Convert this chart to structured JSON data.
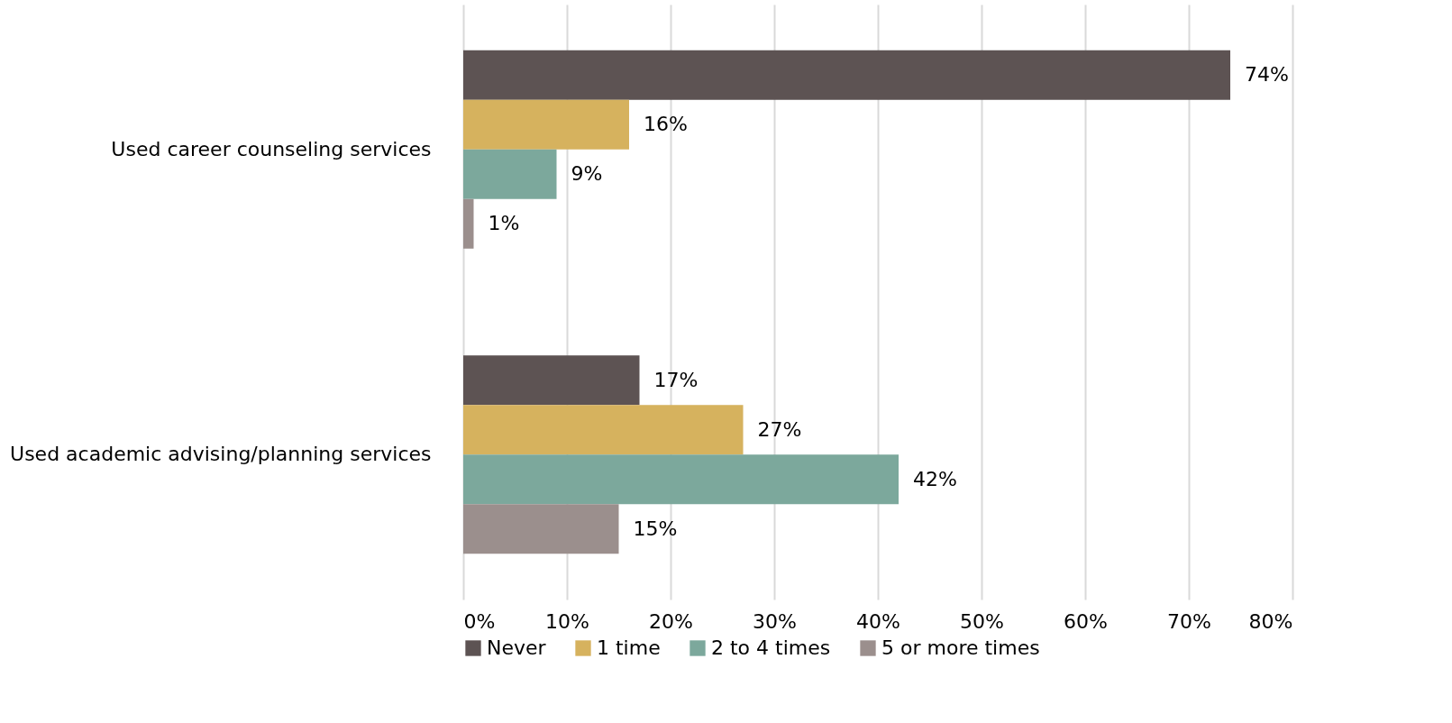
{
  "chart_data": {
    "type": "bar",
    "orientation": "horizontal",
    "categories": [
      "Used career counseling services",
      "Used academic advising/planning services"
    ],
    "series": [
      {
        "name": "Never",
        "color": "#5d5353",
        "values": [
          74,
          17
        ],
        "value_labels": [
          "74%",
          "17%"
        ]
      },
      {
        "name": "1 time",
        "color": "#d6b25e",
        "values": [
          16,
          27
        ],
        "value_labels": [
          "16%",
          "27%"
        ]
      },
      {
        "name": "2 to 4 times",
        "color": "#7ca89c",
        "values": [
          9,
          42
        ],
        "value_labels": [
          "9%",
          "42%"
        ]
      },
      {
        "name": "5 or more times",
        "color": "#9b8f8d",
        "values": [
          1,
          15
        ],
        "value_labels": [
          "1%",
          "15%"
        ]
      }
    ],
    "xlim": [
      0,
      80
    ],
    "xticks": [
      {
        "value": 0,
        "label": "0%"
      },
      {
        "value": 10,
        "label": "10%"
      },
      {
        "value": 20,
        "label": "20%"
      },
      {
        "value": 30,
        "label": "30%"
      },
      {
        "value": 40,
        "label": "40%"
      },
      {
        "value": 50,
        "label": "50%"
      },
      {
        "value": 60,
        "label": "60%"
      },
      {
        "value": 70,
        "label": "70%"
      },
      {
        "value": 80,
        "label": "80%"
      }
    ],
    "grid": "x",
    "legend": "bottom"
  }
}
